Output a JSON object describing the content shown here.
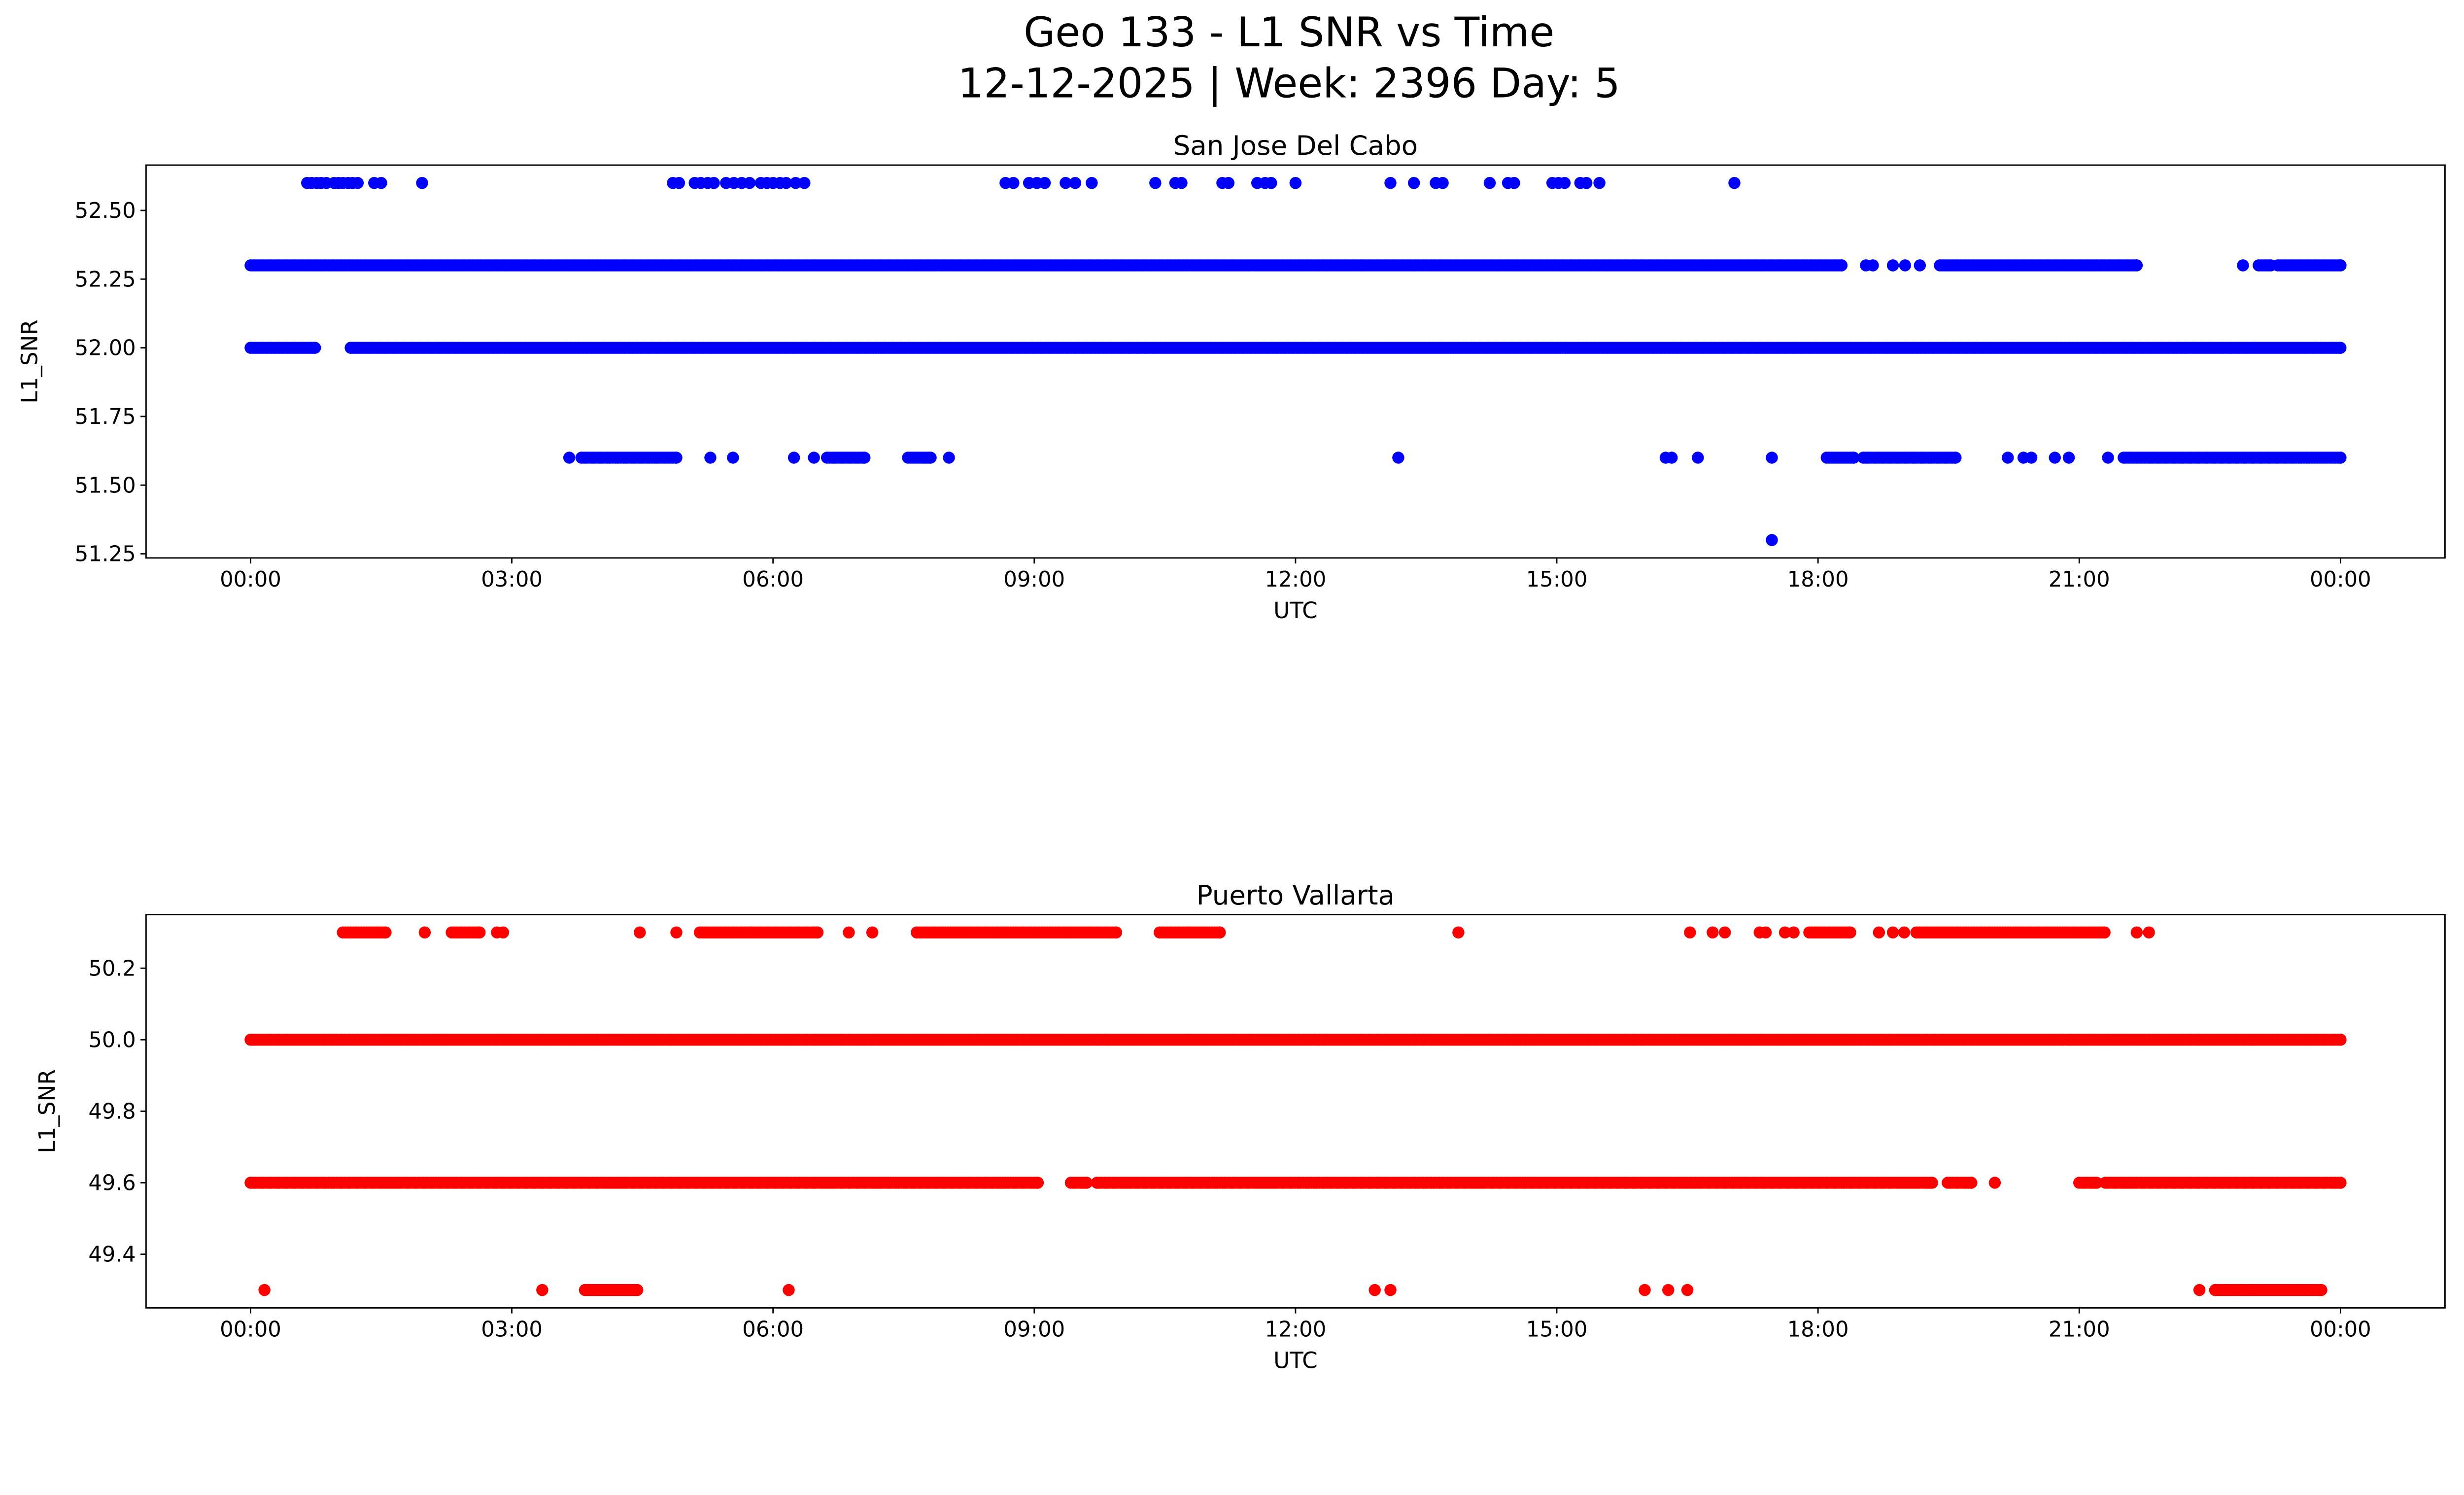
{
  "chart_data": [
    {
      "type": "scatter",
      "suptitle_line1": "Geo 133 - L1 SNR vs Time",
      "suptitle_line2": "12-12-2025 | Week: 2396 Day: 5",
      "title": "San Jose Del Cabo",
      "xlabel": "UTC",
      "ylabel": "L1_SNR",
      "color": "#0000ff",
      "xlim_hours": [
        -1.2,
        25.2
      ],
      "ylim": [
        51.235,
        52.665
      ],
      "xticks_hours": [
        0,
        3,
        6,
        9,
        12,
        15,
        18,
        21,
        24
      ],
      "xtick_labels": [
        "00:00",
        "03:00",
        "06:00",
        "09:00",
        "12:00",
        "15:00",
        "18:00",
        "21:00",
        "00:00"
      ],
      "yticks": [
        51.25,
        51.5,
        51.75,
        52.0,
        52.25,
        52.5
      ],
      "ytick_labels": [
        "51.25",
        "51.50",
        "51.75",
        "52.00",
        "52.25",
        "52.50"
      ],
      "series": [
        {
          "y": 52.6,
          "runs": [],
          "points": [
            0.65,
            0.7,
            0.76,
            0.81,
            0.87,
            0.96,
            1.01,
            1.06,
            1.12,
            1.17,
            1.23,
            1.42,
            1.5,
            1.97,
            4.85,
            4.92,
            5.1,
            5.17,
            5.25,
            5.32,
            5.46,
            5.55,
            5.64,
            5.73,
            5.86,
            5.93,
            6.0,
            6.08,
            6.15,
            6.26,
            6.36,
            8.67,
            8.76,
            8.94,
            9.03,
            9.12,
            9.36,
            9.47,
            9.66,
            10.39,
            10.62,
            10.69,
            11.16,
            11.23,
            11.56,
            11.65,
            11.72,
            12.0,
            13.09,
            13.36,
            13.61,
            13.69,
            14.23,
            14.44,
            14.51,
            14.95,
            15.02,
            15.09,
            15.27,
            15.34,
            15.49,
            17.04
          ]
        },
        {
          "y": 52.3,
          "runs": [
            [
              0,
              18.27
            ],
            [
              19.4,
              21.66
            ],
            [
              23.06,
              23.2
            ],
            [
              23.28,
              24
            ]
          ],
          "points": [
            18.55,
            18.63,
            18.86,
            19.0,
            19.17,
            22.88
          ]
        },
        {
          "y": 52.0,
          "runs": [
            [
              0,
              0.74
            ],
            [
              1.15,
              24
            ]
          ],
          "points": []
        },
        {
          "y": 51.6,
          "runs": [
            [
              3.8,
              4.89
            ],
            [
              6.62,
              7.05
            ],
            [
              7.55,
              7.81
            ],
            [
              18.1,
              18.41
            ],
            [
              18.52,
              19.58
            ],
            [
              21.51,
              24
            ]
          ],
          "points": [
            3.66,
            5.28,
            5.54,
            6.24,
            6.47,
            8.02,
            13.18,
            16.25,
            16.32,
            16.62,
            17.47,
            20.18,
            20.36,
            20.45,
            20.72,
            20.88,
            21.33
          ]
        },
        {
          "y": 51.3,
          "runs": [],
          "points": [
            17.47
          ]
        }
      ]
    },
    {
      "type": "scatter",
      "title": "Puerto Vallarta",
      "xlabel": "UTC",
      "ylabel": "L1_SNR",
      "color": "#ff0000",
      "xlim_hours": [
        -1.2,
        25.2
      ],
      "ylim": [
        49.25,
        50.35
      ],
      "xticks_hours": [
        0,
        3,
        6,
        9,
        12,
        15,
        18,
        21,
        24
      ],
      "xtick_labels": [
        "00:00",
        "03:00",
        "06:00",
        "09:00",
        "12:00",
        "15:00",
        "18:00",
        "21:00",
        "00:00"
      ],
      "yticks": [
        49.4,
        49.6,
        49.8,
        50.0,
        50.2
      ],
      "ytick_labels": [
        "49.4",
        "49.6",
        "49.8",
        "50.0",
        "50.2"
      ],
      "series": [
        {
          "y": 50.3,
          "runs": [
            [
              1.06,
              1.55
            ],
            [
              2.31,
              2.63
            ],
            [
              5.16,
              6.51
            ],
            [
              7.65,
              9.94
            ],
            [
              10.44,
              11.13
            ],
            [
              17.9,
              18.37
            ],
            [
              19.13,
              21.29
            ]
          ],
          "points": [
            2.0,
            2.83,
            2.9,
            4.47,
            4.89,
            6.87,
            7.14,
            13.87,
            16.53,
            16.79,
            16.93,
            17.33,
            17.4,
            17.62,
            17.72,
            18.7,
            18.86,
            18.99,
            21.66,
            21.8
          ]
        },
        {
          "y": 50.0,
          "runs": [
            [
              0,
              24
            ]
          ],
          "points": []
        },
        {
          "y": 49.6,
          "runs": [
            [
              0,
              9.04
            ],
            [
              9.42,
              9.6
            ],
            [
              9.72,
              19.31
            ],
            [
              19.49,
              19.76
            ],
            [
              21.0,
              21.2
            ],
            [
              21.3,
              24
            ]
          ],
          "points": [
            20.03
          ]
        },
        {
          "y": 49.3,
          "runs": [
            [
              3.84,
              4.44
            ],
            [
              22.56,
              23.78
            ]
          ],
          "points": [
            0.16,
            3.35,
            6.18,
            12.91,
            13.09,
            16.01,
            16.28,
            16.5,
            22.38
          ]
        }
      ]
    }
  ]
}
